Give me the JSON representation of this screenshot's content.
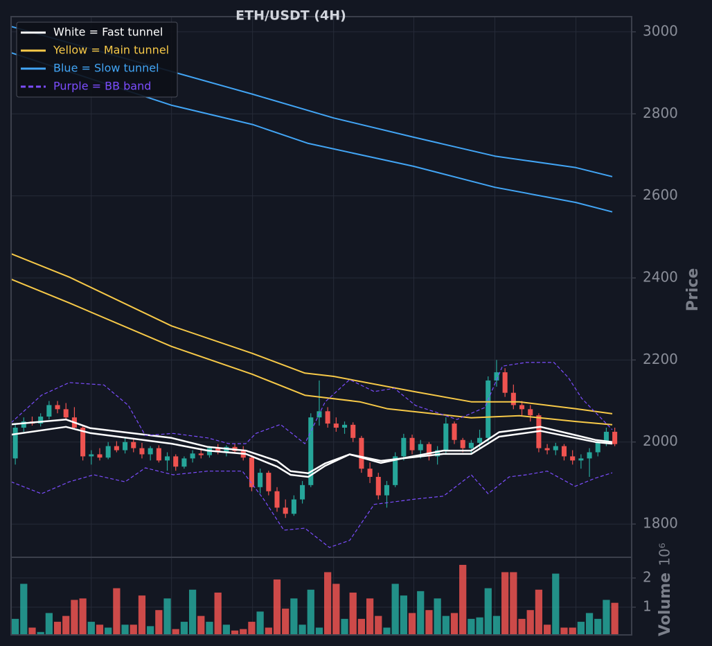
{
  "chart_data": {
    "type": "candlestick",
    "title": "ETH/USDT (4H)",
    "y_label": "Price",
    "xlim": [
      0,
      73.5
    ],
    "xticks": [
      9.5,
      19,
      28.6,
      38.2,
      47.7,
      57.3,
      66.9
    ],
    "ylim": [
      1719,
      3037
    ],
    "yticks": [
      1800,
      2000,
      2200,
      2400,
      2600,
      2800,
      3000
    ],
    "grid": true,
    "legend_position": "upper left",
    "up_color": "#26a69a",
    "down_color": "#ef5350",
    "open": [
      1960,
      2035,
      2050,
      2045,
      2062,
      2090,
      2080,
      2060,
      2035,
      1965,
      1970,
      1962,
      1990,
      1980,
      2000,
      1985,
      1970,
      1985,
      1955,
      1965,
      1940,
      1960,
      1972,
      1968,
      1985,
      1975,
      1988,
      1978,
      1962,
      1890,
      1925,
      1880,
      1840,
      1825,
      1860,
      1895,
      2060,
      2075,
      2045,
      2035,
      2042,
      2010,
      1935,
      1915,
      1870,
      1895,
      1965,
      2010,
      1980,
      1995,
      1965,
      1980,
      2045,
      2005,
      1985,
      1998,
      2010,
      2150,
      2170,
      2120,
      2090,
      2080,
      2065,
      1985,
      1980,
      1990,
      1965,
      1955,
      1960,
      1975,
      1998,
      2025
    ],
    "high": [
      2045,
      2060,
      2062,
      2070,
      2100,
      2100,
      2095,
      2085,
      2040,
      1980,
      1985,
      2000,
      2002,
      2010,
      2008,
      1998,
      1990,
      1992,
      1975,
      1970,
      1965,
      1980,
      1985,
      1990,
      1995,
      1992,
      1995,
      1990,
      1968,
      1935,
      1930,
      1890,
      1860,
      1870,
      1905,
      2070,
      2150,
      2085,
      2060,
      2050,
      2048,
      2015,
      1950,
      1925,
      1905,
      1975,
      2020,
      2018,
      2005,
      2000,
      1990,
      2060,
      2050,
      2010,
      2005,
      2030,
      2160,
      2200,
      2180,
      2140,
      2100,
      2090,
      2070,
      1995,
      1998,
      1995,
      1980,
      1970,
      1985,
      2005,
      2035,
      2035
    ],
    "low": [
      1945,
      2025,
      2040,
      2038,
      2055,
      2070,
      2055,
      2030,
      1955,
      1945,
      1955,
      1958,
      1975,
      1972,
      1975,
      1960,
      1955,
      1950,
      1930,
      1930,
      1935,
      1950,
      1960,
      1962,
      1970,
      1965,
      1972,
      1955,
      1880,
      1875,
      1870,
      1830,
      1815,
      1820,
      1850,
      1890,
      2040,
      2035,
      2025,
      2020,
      2000,
      1925,
      1900,
      1860,
      1840,
      1890,
      1955,
      1970,
      1960,
      1955,
      1945,
      1970,
      1995,
      1975,
      1970,
      1985,
      2000,
      2135,
      2110,
      2080,
      2065,
      2050,
      1975,
      1970,
      1968,
      1955,
      1945,
      1935,
      1915,
      1965,
      1990,
      1990
    ],
    "close": [
      2035,
      2050,
      2045,
      2062,
      2090,
      2080,
      2060,
      2035,
      1965,
      1970,
      1962,
      1990,
      1980,
      2000,
      1985,
      1970,
      1985,
      1955,
      1965,
      1940,
      1960,
      1972,
      1968,
      1985,
      1975,
      1988,
      1978,
      1962,
      1890,
      1925,
      1880,
      1840,
      1825,
      1860,
      1895,
      2060,
      2075,
      2045,
      2035,
      2042,
      2010,
      1935,
      1915,
      1870,
      1895,
      1965,
      2010,
      1980,
      1995,
      1965,
      1980,
      2045,
      2005,
      1985,
      1998,
      2010,
      2150,
      2170,
      2120,
      2090,
      2080,
      2065,
      1985,
      1980,
      1990,
      1965,
      1955,
      1960,
      1975,
      1998,
      2025,
      1995
    ],
    "series": [
      {
        "name": "White = Fast tunnel",
        "color": "#ffffff",
        "dashed": false,
        "width": 2.5,
        "lines": [
          {
            "x": [
              0,
              6.5,
              9.35,
              19,
              23.3,
              27.8,
              31.5,
              33.1,
              35.2,
              37.2,
              40.1,
              43.8,
              46.3,
              51.2,
              54.5,
              57.8,
              62.7,
              66.8,
              69.2,
              71.2
            ],
            "values": [
              2043,
              2055,
              2034,
              2010,
              1988,
              1979,
              1954,
              1929,
              1924,
              1948,
              1970,
              1954,
              1960,
              1979,
              1979,
              2024,
              2037,
              2017,
              2005,
              2000
            ]
          },
          {
            "x": [
              0,
              6.5,
              9.35,
              19,
              23.3,
              27.8,
              31.5,
              33.1,
              35.2,
              37.2,
              40.1,
              43.8,
              46.3,
              51.2,
              54.5,
              57.8,
              62.7,
              66.8,
              69.2,
              71.2
            ],
            "values": [
              2018,
              2037,
              2022,
              1996,
              1979,
              1971,
              1940,
              1920,
              1915,
              1942,
              1970,
              1949,
              1960,
              1971,
              1971,
              2013,
              2027,
              2010,
              2000,
              1996
            ]
          }
        ]
      },
      {
        "name": "Yellow = Main tunnel",
        "color": "#f7c948",
        "dashed": false,
        "width": 2,
        "lines": [
          {
            "x": [
              0,
              6.9,
              19,
              28.6,
              34.8,
              38.2,
              47.7,
              54.5,
              60.2,
              66.9,
              71.2
            ],
            "values": [
              2459,
              2402,
              2283,
              2216,
              2168,
              2160,
              2123,
              2098,
              2098,
              2081,
              2069
            ]
          },
          {
            "x": [
              0,
              6.9,
              19,
              28.6,
              34.8,
              41.3,
              44.6,
              54.5,
              60.2,
              66.9,
              71.2
            ],
            "values": [
              2397,
              2339,
              2233,
              2165,
              2114,
              2098,
              2081,
              2059,
              2064,
              2050,
              2042
            ]
          }
        ]
      },
      {
        "name": "Blue = Slow tunnel",
        "color": "#42a5f5",
        "dashed": false,
        "width": 2,
        "lines": [
          {
            "x": [
              0,
              28.6,
              38.2,
              47.7,
              57.3,
              66.9,
              71.2
            ],
            "values": [
              3013,
              2848,
              2790,
              2743,
              2697,
              2669,
              2647
            ]
          },
          {
            "x": [
              0,
              19,
              28.6,
              35.2,
              47.7,
              57.3,
              66.9,
              71.2
            ],
            "values": [
              2949,
              2821,
              2774,
              2728,
              2672,
              2621,
              2584,
              2561
            ]
          }
        ]
      },
      {
        "name": "Purple = BB band",
        "color": "#7c4dff",
        "dashed": true,
        "width": 1.2,
        "lines": [
          {
            "x": [
              0,
              3.6,
              6.9,
              11,
              13.9,
              15.9,
              19.2,
              23.3,
              25.8,
              27.8,
              29,
              31.9,
              34.8,
              37.2,
              40.1,
              43,
              45.4,
              47.9,
              50.4,
              52.8,
              56.1,
              58.2,
              61,
              64.3,
              66,
              67.6,
              71.2
            ],
            "values": [
              2047,
              2114,
              2145,
              2139,
              2089,
              2016,
              2021,
              2010,
              1996,
              1996,
              2021,
              2043,
              1996,
              2098,
              2152,
              2123,
              2131,
              2089,
              2072,
              2055,
              2084,
              2185,
              2194,
              2194,
              2157,
              2106,
              2030
            ]
          },
          {
            "x": [
              0,
              3.6,
              6.9,
              9.8,
              13.5,
              15.9,
              19.2,
              23.3,
              27.4,
              29.9,
              32.3,
              34.8,
              37.7,
              40.1,
              43,
              47.9,
              51.2,
              54.5,
              56.5,
              59,
              61,
              63.5,
              66.8,
              69.2,
              71.2
            ],
            "values": [
              1903,
              1874,
              1903,
              1920,
              1903,
              1937,
              1920,
              1929,
              1929,
              1861,
              1785,
              1790,
              1743,
              1760,
              1848,
              1861,
              1868,
              1920,
              1874,
              1915,
              1920,
              1929,
              1892,
              1912,
              1925
            ]
          }
        ]
      }
    ],
    "volume": {
      "y_label": "Volume",
      "offset_label": "10⁶",
      "ylim": [
        0.05,
        2.71
      ],
      "yticks": [
        1,
        2
      ],
      "values": [
        0.6,
        1.8,
        0.3,
        0.15,
        0.8,
        0.5,
        0.7,
        1.25,
        1.3,
        0.5,
        0.4,
        0.3,
        1.65,
        0.4,
        0.4,
        1.4,
        0.35,
        0.9,
        1.3,
        0.25,
        0.5,
        1.6,
        0.7,
        0.5,
        1.5,
        0.4,
        0.2,
        0.25,
        0.5,
        0.85,
        0.3,
        1.95,
        0.95,
        1.3,
        0.4,
        1.6,
        0.3,
        2.2,
        1.8,
        0.6,
        1.5,
        0.6,
        1.3,
        0.7,
        0.3,
        1.8,
        1.4,
        0.8,
        1.55,
        0.9,
        1.3,
        0.7,
        0.8,
        2.45,
        0.6,
        0.65,
        1.65,
        0.7,
        2.2,
        2.2,
        0.6,
        0.9,
        1.6,
        0.4,
        2.15,
        0.3,
        0.3,
        0.5,
        0.8,
        0.6,
        1.25,
        1.15
      ]
    }
  }
}
